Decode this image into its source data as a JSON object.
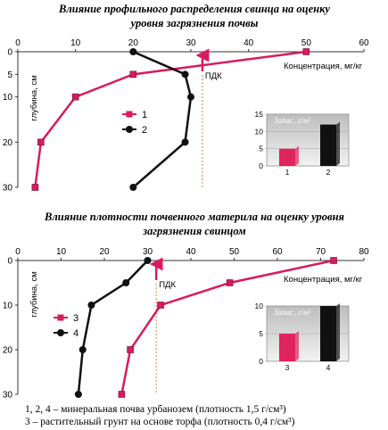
{
  "chart_data": [
    {
      "type": "line",
      "title": "Влияние профильного распределения свинца на оценку уровня загрязнения почвы",
      "title_lines": [
        "Влияние профильного распределения свинца на оценку",
        "уровня загрязнения почвы"
      ],
      "xlabel": "Концентрация, мг/кг",
      "ylabel": "глубина, см",
      "xlim": [
        0,
        60
      ],
      "ylim": [
        0,
        30
      ],
      "x_ticks": [
        "0",
        "10",
        "20",
        "30",
        "40",
        "50",
        "60"
      ],
      "y_ticks": [
        "0",
        "5",
        "10",
        "20",
        "30"
      ],
      "threshold": {
        "label": "ПДК",
        "x": 32
      },
      "series": [
        {
          "name": "1",
          "color": "#d81b60",
          "marker": "square",
          "points": [
            [
              50,
              0
            ],
            [
              20,
              5
            ],
            [
              10,
              10
            ],
            [
              4,
              20
            ],
            [
              3,
              30
            ]
          ]
        },
        {
          "name": "2",
          "color": "#111111",
          "marker": "circle",
          "points": [
            [
              20,
              0
            ],
            [
              29,
              5
            ],
            [
              30,
              10
            ],
            [
              29,
              20
            ],
            [
              20,
              30
            ]
          ]
        }
      ],
      "inset": {
        "title": "Запас, г/м²",
        "ylim": [
          0,
          15
        ],
        "y_ticks": [
          "0",
          "5",
          "10",
          "15"
        ],
        "categories": [
          "1",
          "2"
        ],
        "values": [
          5,
          12
        ],
        "colors": [
          "#e0245e",
          "#111111"
        ]
      }
    },
    {
      "type": "line",
      "title": "Влияние плотности почвенного материла на оценку уровня загрязнения свинцом",
      "title_lines": [
        "Влияние плотности почвенного материла на оценку уровня",
        "загрязнения свинцом"
      ],
      "xlabel": "Концентрация, мг/кг",
      "ylabel": "глубина, см",
      "xlim": [
        0,
        80
      ],
      "ylim": [
        0,
        30
      ],
      "x_ticks": [
        "0",
        "10",
        "20",
        "30",
        "40",
        "50",
        "60",
        "70",
        "80"
      ],
      "y_ticks": [
        "0",
        "10",
        "20",
        "30"
      ],
      "threshold": {
        "label": "ПДК",
        "x": 32
      },
      "series": [
        {
          "name": "3",
          "color": "#d81b60",
          "marker": "square",
          "points": [
            [
              73,
              0
            ],
            [
              49,
              5
            ],
            [
              33,
              10
            ],
            [
              26,
              20
            ],
            [
              24,
              30
            ]
          ]
        },
        {
          "name": "4",
          "color": "#111111",
          "marker": "circle",
          "points": [
            [
              30,
              0
            ],
            [
              25,
              5
            ],
            [
              17,
              10
            ],
            [
              15,
              20
            ],
            [
              14,
              30
            ]
          ]
        }
      ],
      "inset": {
        "title": "Запас, г/м²",
        "ylim": [
          0,
          10
        ],
        "y_ticks": [
          "0",
          "5",
          "10"
        ],
        "categories": [
          "3",
          "4"
        ],
        "values": [
          5,
          10
        ],
        "colors": [
          "#e0245e",
          "#111111"
        ]
      }
    }
  ],
  "footnote": [
    "1, 2, 4 – минеральная почва урбанозем (плотность 1,5 г/см³)",
    "3 – растительный грунт на основе торфа (плотность 0,4 г/см³)"
  ]
}
